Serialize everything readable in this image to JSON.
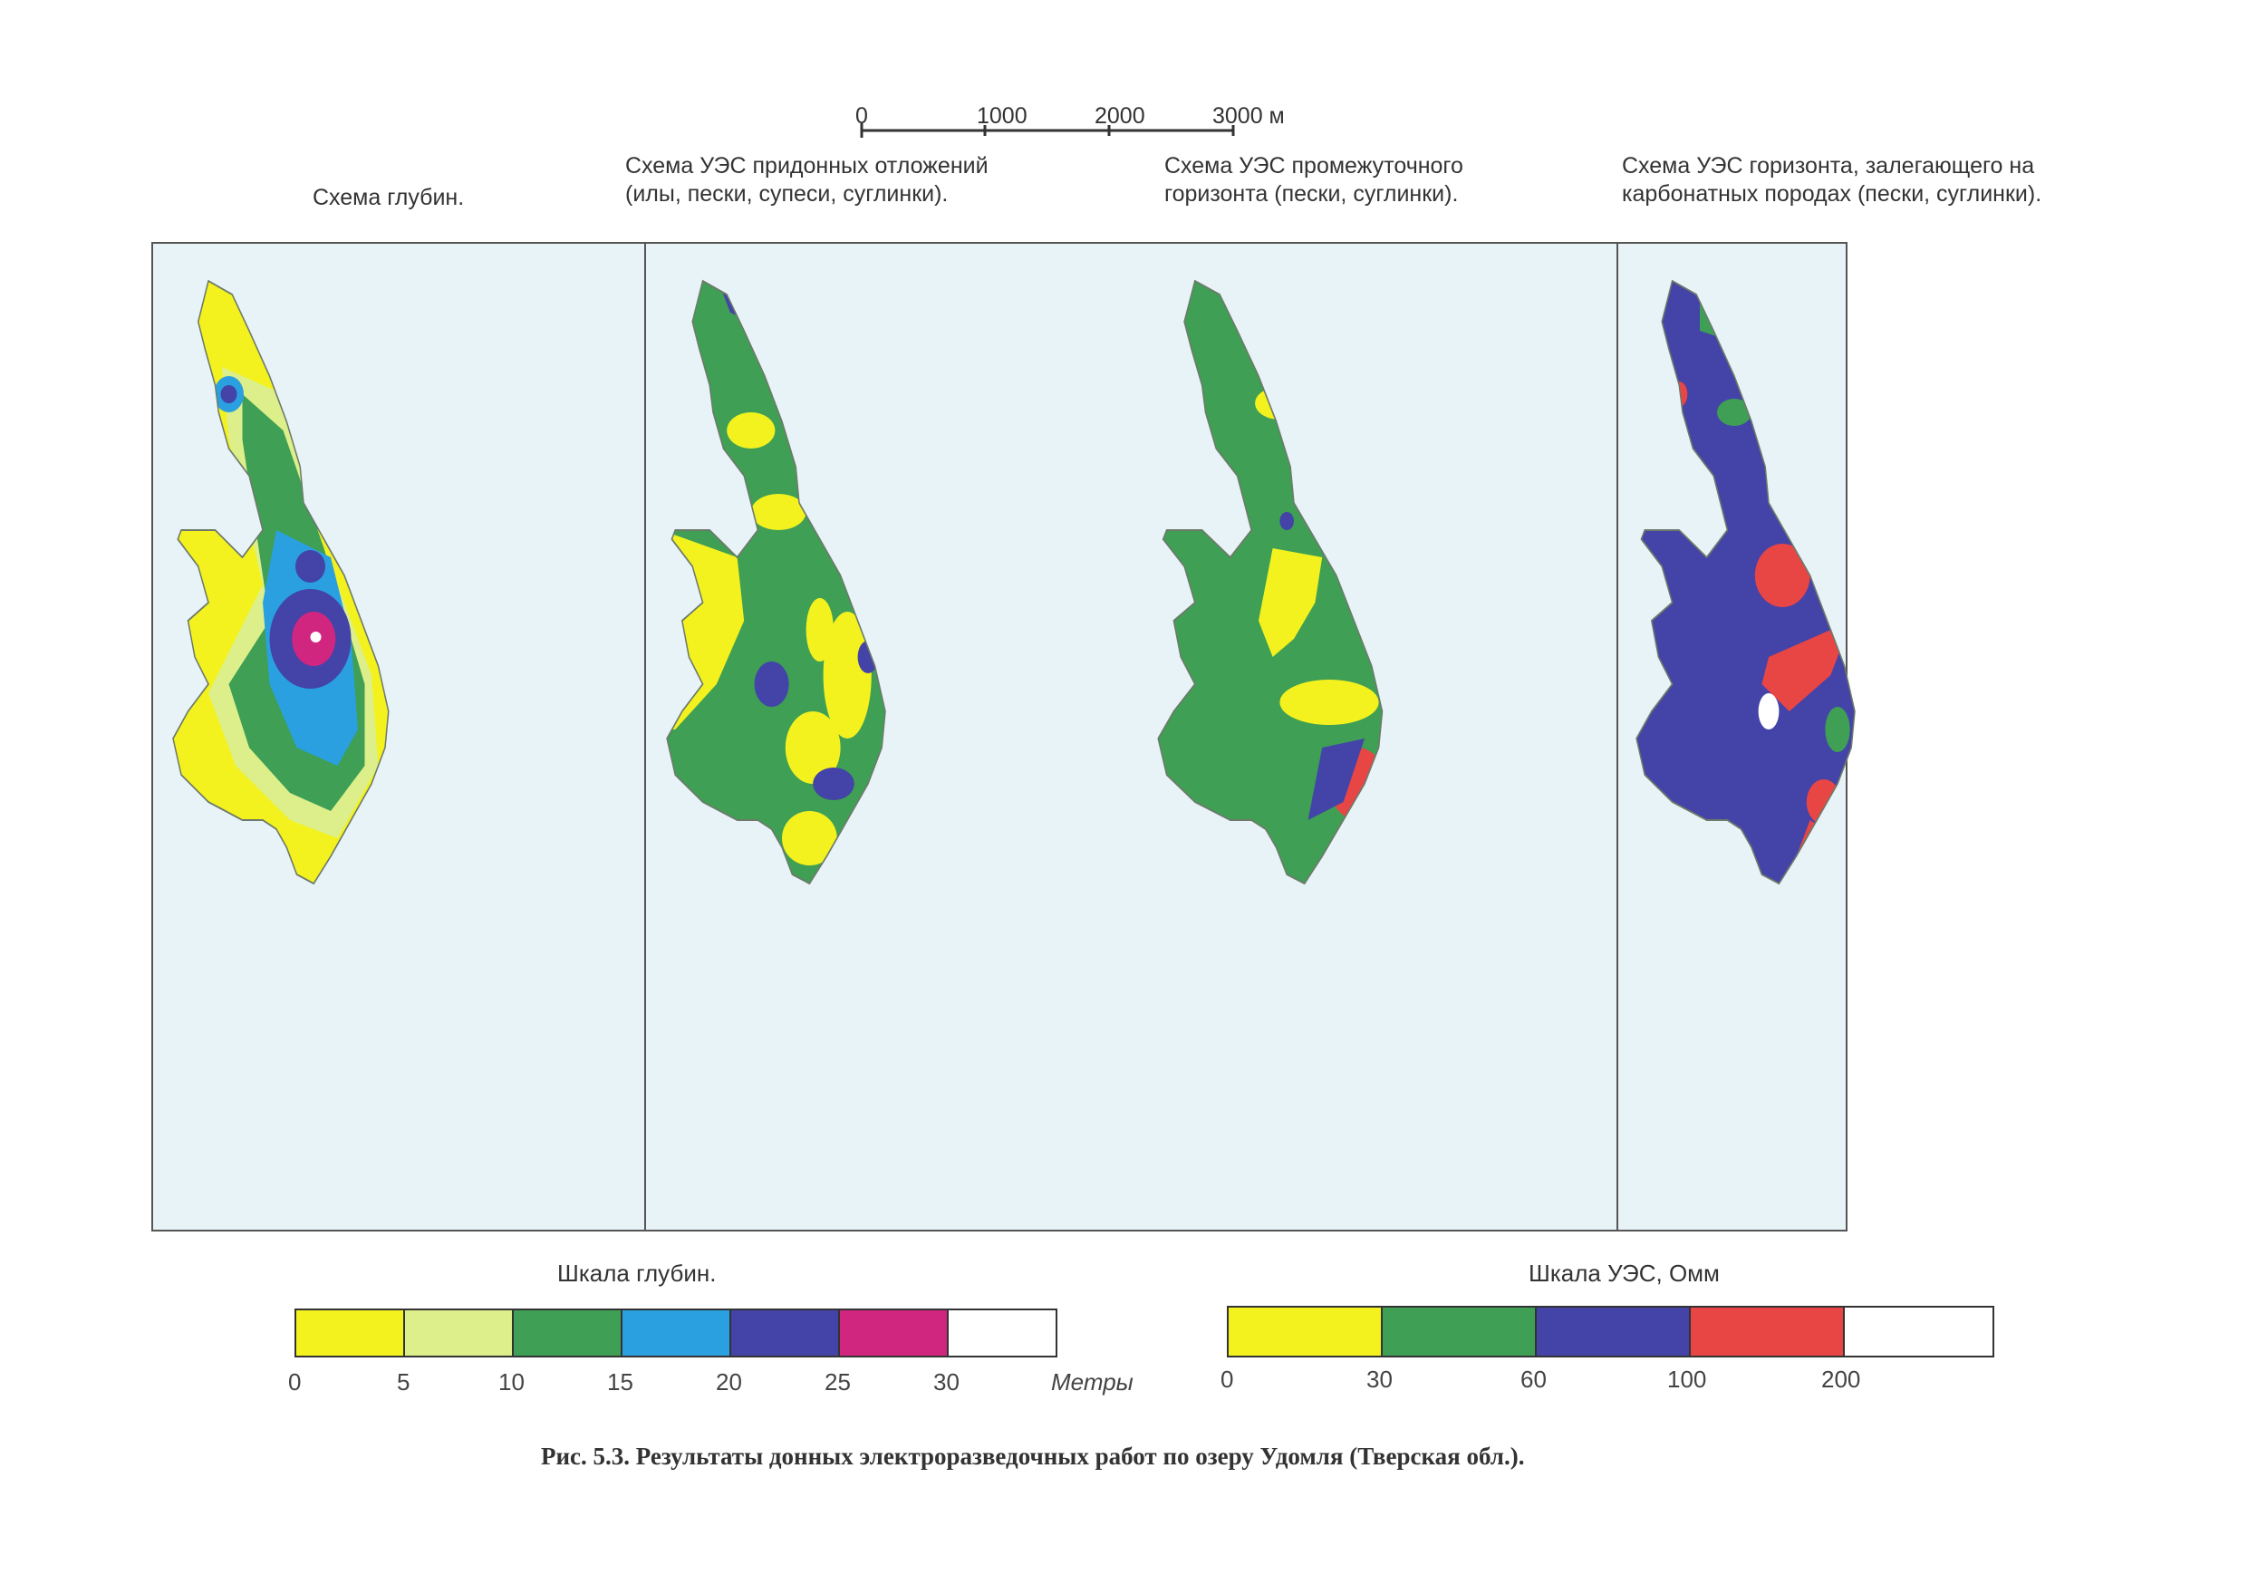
{
  "scale_bar": {
    "ticks": [
      "0",
      "1000",
      "2000",
      "3000 м"
    ]
  },
  "panels": [
    {
      "title_lines": [
        "Схема глубин."
      ]
    },
    {
      "title_lines": [
        "Схема УЭС придонных отложений",
        "(илы, пески, супеси, суглинки)."
      ]
    },
    {
      "title_lines": [
        "Схема УЭС промежуточного",
        "горизонта (пески, суглинки)."
      ]
    },
    {
      "title_lines": [
        "Схема УЭС горизонта, залегающего на",
        "карбонатных породах (пески, суглинки)."
      ]
    }
  ],
  "depth_legend": {
    "title": "Шкала глубин.",
    "ticks": [
      "0",
      "5",
      "10",
      "15",
      "20",
      "25",
      "30"
    ],
    "unit": "Метры",
    "colors": [
      "#f4f21e",
      "#dcef8a",
      "#3e9f55",
      "#2aa0e0",
      "#4343a8",
      "#d0267f",
      "#ffffff"
    ]
  },
  "res_legend": {
    "title": "Шкала УЭС, Омм",
    "ticks": [
      "0",
      "30",
      "60",
      "100",
      "200"
    ],
    "colors": [
      "#f4f21e",
      "#3e9f55",
      "#4343a8",
      "#e84545",
      "#ffffff"
    ]
  },
  "map_colors": {
    "background": "#e8f3f8",
    "frame": "#555555"
  },
  "caption": "Рис. 5.3. Результаты донных электроразведочных работ по озеру Удомля (Тверская обл.)."
}
